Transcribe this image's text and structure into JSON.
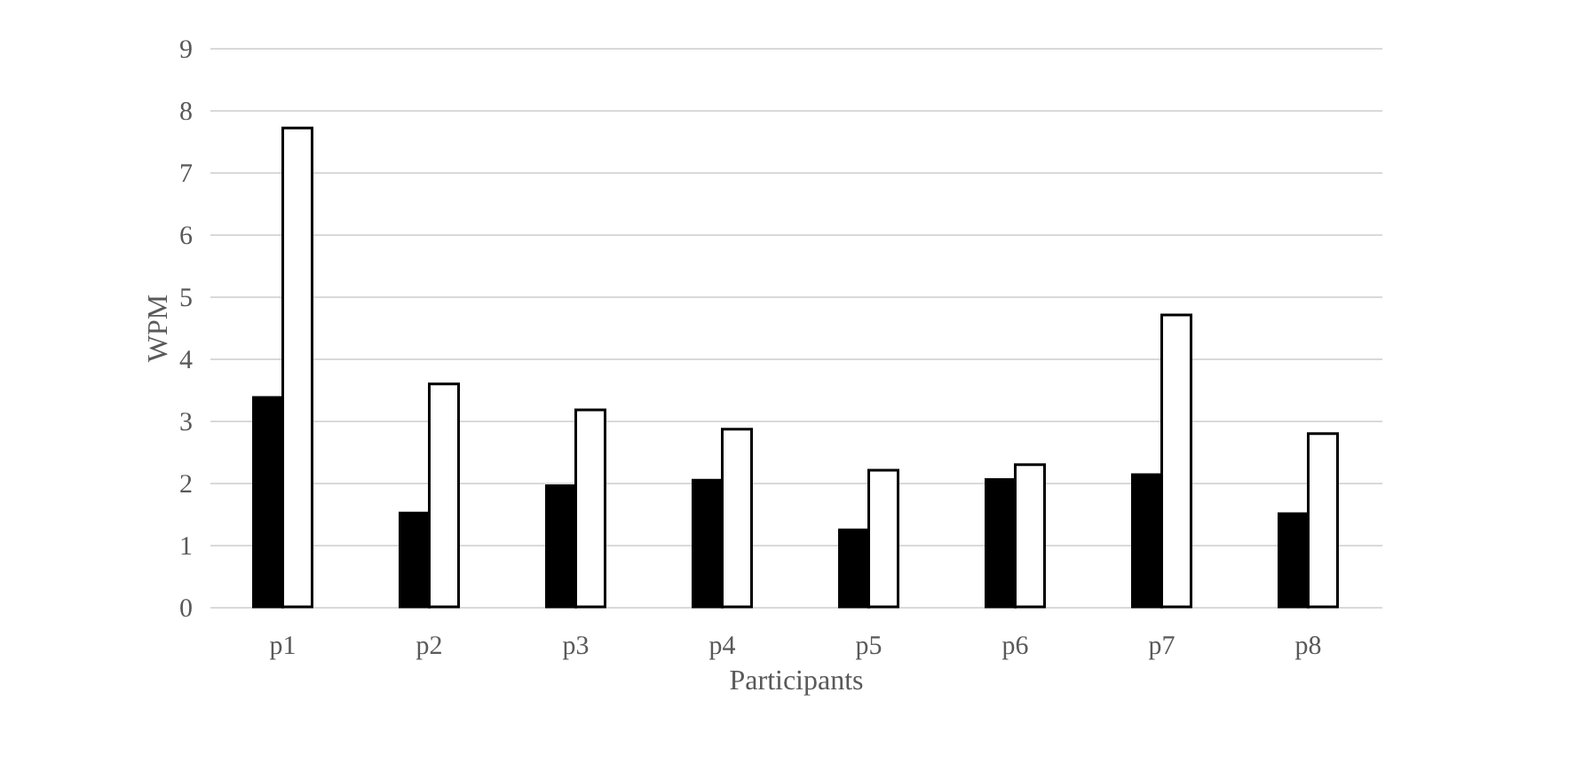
{
  "chart_data": {
    "type": "bar",
    "xlabel": "Participants",
    "ylabel": "WPM",
    "categories": [
      "p1",
      "p2",
      "p3",
      "p4",
      "p5",
      "p6",
      "p7",
      "p8"
    ],
    "series": [
      {
        "color": "#000000",
        "values": [
          3.37,
          1.51,
          1.95,
          2.04,
          1.24,
          2.05,
          2.13,
          1.5
        ]
      },
      {
        "color": "#ffffff",
        "values": [
          7.71,
          3.59,
          3.17,
          2.86,
          2.2,
          2.29,
          4.7,
          2.79
        ]
      }
    ],
    "ylim": [
      0,
      9
    ],
    "yticks": [
      0,
      1,
      2,
      3,
      4,
      5,
      6,
      7,
      8,
      9
    ],
    "grid": "y"
  }
}
